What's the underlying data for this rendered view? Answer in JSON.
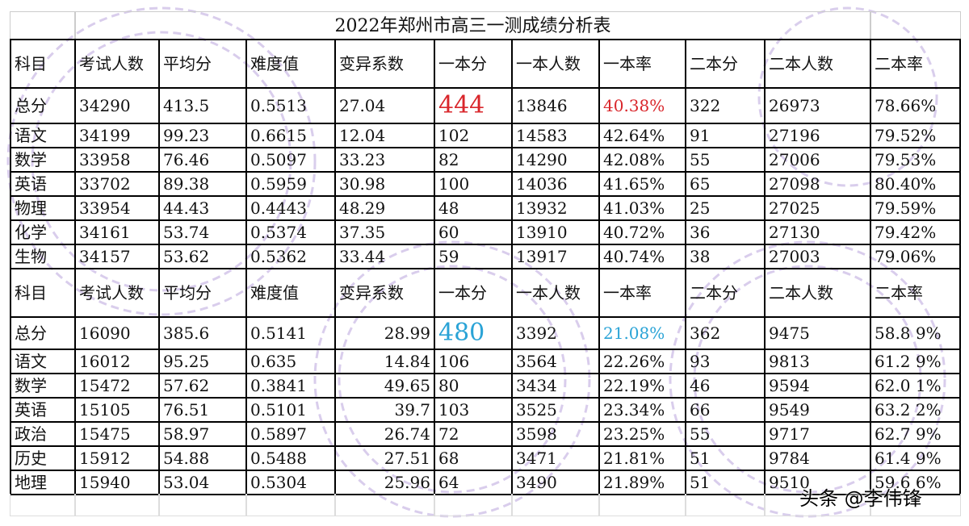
{
  "title": "2022年郑州市高三一测成绩分析表",
  "credit": "头条 @李伟锋",
  "colors": {
    "highlight_red": "#d9262b",
    "highlight_blue": "#2aa3d6",
    "watermark": "#b9a6d8"
  },
  "header_top": [
    "科目",
    "考试人数",
    "平均分",
    "难度值",
    "变异系数",
    "一本分",
    "一本人数",
    "一本率",
    "二本分",
    "二本人数",
    "二本率"
  ],
  "rows_top": [
    [
      "总分",
      "34290",
      "413.5",
      "0.5513",
      "27.04",
      "444",
      "13846",
      "40.38%",
      "322",
      "26973",
      "78.66%"
    ],
    [
      "语文",
      "34199",
      "99.23",
      "0.6615",
      "12.04",
      "102",
      "14583",
      "42.64%",
      "91",
      "27196",
      "79.52%"
    ],
    [
      "数学",
      "33958",
      "76.46",
      "0.5097",
      "33.23",
      "82",
      "14290",
      "42.08%",
      "55",
      "27006",
      "79.53%"
    ],
    [
      "英语",
      "33702",
      "89.38",
      "0.5959",
      "30.98",
      "100",
      "14036",
      "41.65%",
      "65",
      "27098",
      "80.40%"
    ],
    [
      "物理",
      "33954",
      "44.43",
      "0.4443",
      "48.29",
      "48",
      "13932",
      "41.03%",
      "25",
      "27025",
      "79.59%"
    ],
    [
      "化学",
      "34161",
      "53.74",
      "0.5374",
      "37.35",
      "60",
      "13910",
      "40.72%",
      "36",
      "27130",
      "79.42%"
    ],
    [
      "生物",
      "34157",
      "53.62",
      "0.5362",
      "33.44",
      "59",
      "13917",
      "40.74%",
      "38",
      "27003",
      "79.06%"
    ]
  ],
  "header_bottom": [
    "科目",
    "考试人数",
    "平均分",
    "难度值",
    "变异系数",
    "一本分",
    "一本人数",
    "一本率",
    "二本分",
    "二本人数",
    "二本率"
  ],
  "rows_bottom": [
    [
      "总分",
      "16090",
      "385.6",
      "0.5141",
      "28.99",
      "480",
      "3392",
      "21.08%",
      "362",
      "9475",
      "58.8 9%"
    ],
    [
      "语文",
      "16012",
      "95.25",
      "0.635",
      "14.84",
      "106",
      "3564",
      "22.26%",
      "93",
      "9813",
      "61.2 9%"
    ],
    [
      "数学",
      "15472",
      "57.62",
      "0.3841",
      "49.65",
      "80",
      "3434",
      "22.19%",
      "46",
      "9594",
      "62.0 1%"
    ],
    [
      "英语",
      "15105",
      "76.51",
      "0.5101",
      "39.7",
      "103",
      "3525",
      "23.34%",
      "66",
      "9549",
      "63.2 2%"
    ],
    [
      "政治",
      "15475",
      "58.97",
      "0.5897",
      "26.74",
      "72",
      "3598",
      "23.25%",
      "55",
      "9717",
      "62.7 9%"
    ],
    [
      "历史",
      "15912",
      "54.88",
      "0.5488",
      "27.51",
      "68",
      "3471",
      "21.81%",
      "51",
      "9784",
      "61.4 9%"
    ],
    [
      "地理",
      "15940",
      "53.04",
      "0.5304",
      "25.96",
      "64",
      "3490",
      "21.89%",
      "51",
      "9510",
      "59.6 6%"
    ]
  ]
}
